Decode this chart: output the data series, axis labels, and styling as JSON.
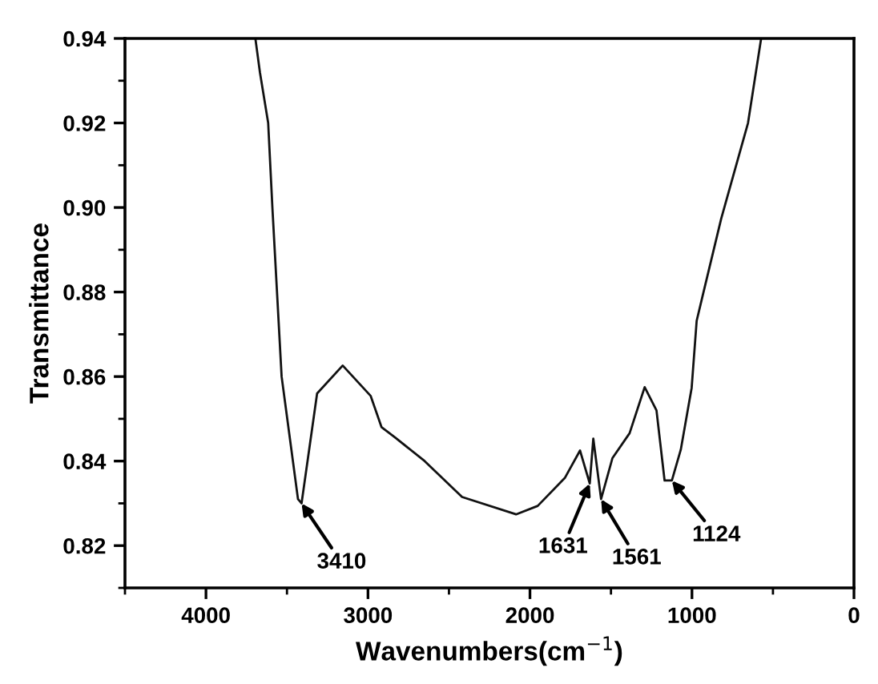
{
  "chart_data": {
    "type": "line",
    "xlabel": "Wavenumbers(cm$^{−1}$)",
    "ylabel": "Transmittance",
    "x": [
      3695,
      3667,
      3616,
      3590,
      3533,
      3432,
      3410,
      3314,
      3156,
      2983,
      2916,
      2833,
      2650,
      2419,
      2086,
      1952,
      1785,
      1691,
      1631,
      1609,
      1561,
      1491,
      1385,
      1292,
      1219,
      1169,
      1124,
      1069,
      1002,
      971,
      936,
      820,
      654,
      573
    ],
    "series": [
      {
        "color": "#111111",
        "values": [
          0.94,
          0.932,
          0.92,
          0.9,
          0.86,
          0.831,
          0.83,
          0.856,
          0.8626,
          0.8554,
          0.848,
          0.8456,
          0.84,
          0.8315,
          0.8274,
          0.8294,
          0.836,
          0.8425,
          0.8347,
          0.8453,
          0.831,
          0.8407,
          0.8466,
          0.8575,
          0.852,
          0.8354,
          0.8354,
          0.8427,
          0.8573,
          0.8732,
          0.8788,
          0.8973,
          0.92,
          0.94
        ]
      }
    ],
    "xlim": [
      4500,
      0
    ],
    "ylim": [
      0.81,
      0.94
    ],
    "xticks": [
      4000,
      3000,
      2000,
      1000,
      0
    ],
    "yticks": [
      {
        "value": 0.82,
        "label": "0.82"
      },
      {
        "value": 0.84,
        "label": "0.84"
      },
      {
        "value": 0.86,
        "label": "0.86"
      },
      {
        "value": 0.88,
        "label": "0.88"
      },
      {
        "value": 0.9,
        "label": "0.90"
      },
      {
        "value": 0.92,
        "label": "0.92"
      },
      {
        "value": 0.94,
        "label": "0.94"
      }
    ],
    "annotations": [
      {
        "text": "3410",
        "x": 3410,
        "y": 0.83
      },
      {
        "text": "1631",
        "x": 1631,
        "y": 0.8347
      },
      {
        "text": "1561",
        "x": 1561,
        "y": 0.831
      },
      {
        "text": "1124",
        "x": 1124,
        "y": 0.8354
      }
    ],
    "grid": false,
    "legend": false,
    "marker": "none",
    "line_style": "solid"
  }
}
